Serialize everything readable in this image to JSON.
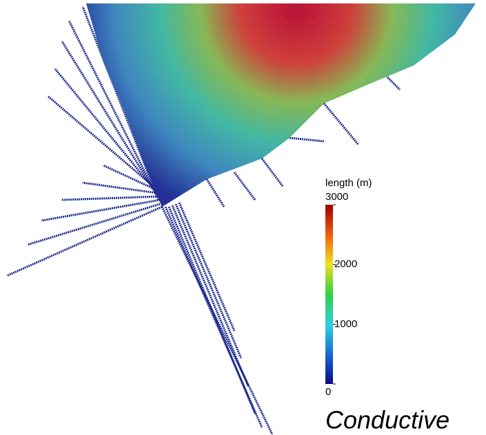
{
  "colorbar": {
    "title": "length (m)",
    "range": [
      0,
      3000
    ],
    "ticks": [
      0,
      1000,
      2000,
      3000
    ]
  },
  "caption": "Conductive"
}
